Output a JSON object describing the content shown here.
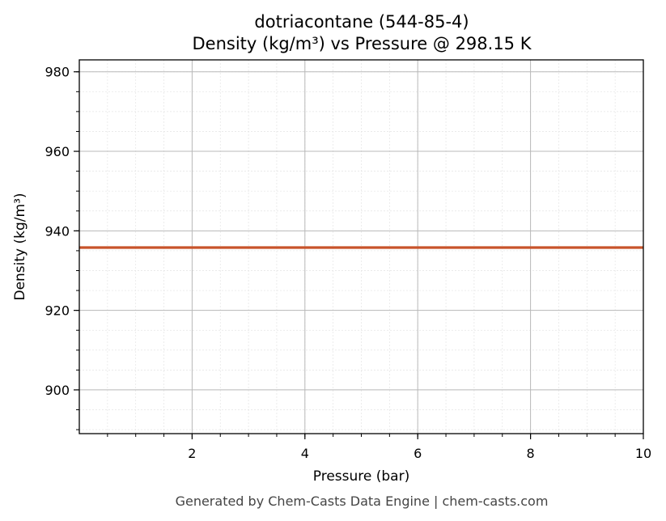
{
  "chart_data": {
    "type": "line",
    "title_lines": [
      "dotriacontane (544-85-4)",
      "Density (kg/m³) vs Pressure @ 298.15 K"
    ],
    "xlabel": "Pressure (bar)",
    "ylabel": "Density (kg/m³)",
    "xlim": [
      0.0,
      10.0
    ],
    "ylim": [
      889,
      983
    ],
    "x_ticks": [
      2,
      4,
      6,
      8,
      10
    ],
    "y_ticks": [
      900,
      920,
      940,
      960,
      980
    ],
    "x_minor_step": 0.5,
    "y_minor_step": 5,
    "grid": true,
    "series": [
      {
        "color": "#c8532a",
        "x": [
          0.0,
          10.0
        ],
        "y": [
          935.8,
          935.8
        ]
      }
    ],
    "footer": "Generated by Chem-Casts Data Engine | chem-casts.com"
  }
}
